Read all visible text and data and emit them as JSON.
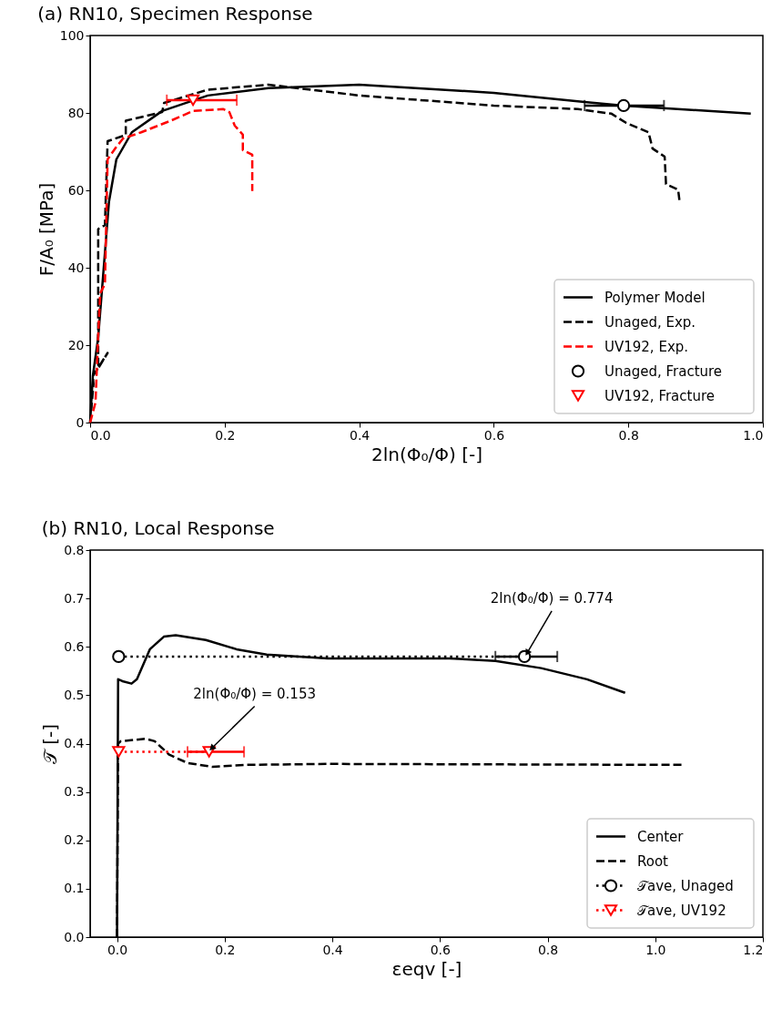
{
  "chart_data": [
    {
      "type": "line",
      "title": "(a) RN10, Specimen Response",
      "xlabel": "2ln(Φ₀/Φ) [-]",
      "ylabel": "F/A₀ [MPa]",
      "xlim": [
        0,
        1.0
      ],
      "ylim": [
        0,
        100
      ],
      "xticks": [
        {
          "value": 0,
          "label": "0.0"
        },
        {
          "value": 0.2,
          "label": "0.2"
        },
        {
          "value": 0.4,
          "label": "0.4"
        },
        {
          "value": 0.6,
          "label": "0.6"
        },
        {
          "value": 0.8,
          "label": "0.8"
        },
        {
          "value": 1.0,
          "label": "1.0"
        }
      ],
      "yticks": [
        0,
        20,
        40,
        60,
        80,
        100
      ],
      "grid": false,
      "legend": "bottom right",
      "series": [
        {
          "name": "Polymer Model",
          "color": "#000000",
          "line_style": "solid",
          "x": [
            0,
            0.004,
            0.012,
            0.028,
            0.039,
            0.062,
            0.107,
            0.175,
            0.265,
            0.4,
            0.6,
            0.735,
            0.793,
            0.982
          ],
          "values": [
            0,
            12,
            22,
            57,
            68,
            75,
            80.5,
            84.5,
            86.4,
            87.3,
            85.2,
            82.8,
            81.9,
            79.8
          ]
        },
        {
          "name": "Unaged, Exp.",
          "color": "#000000",
          "line_style": "dashed",
          "x": [
            0,
            0.005,
            0.004,
            0.026,
            0.012,
            0.012,
            0.022,
            0.026,
            0.053,
            0.053,
            0.107,
            0.11,
            0.175,
            0.265,
            0.4,
            0.6,
            0.725,
            0.775,
            0.797,
            0.83,
            0.836,
            0.854,
            0.856,
            0.874,
            0.876
          ],
          "values": [
            0,
            10,
            12,
            18,
            14,
            50,
            51,
            72.7,
            74.3,
            78,
            80.2,
            82.6,
            86,
            87.3,
            84.5,
            81.9,
            81,
            79.8,
            77.4,
            75,
            70.8,
            68.7,
            61.6,
            60.2,
            57.4
          ]
        },
        {
          "name": "UV192, Exp.",
          "color": "#ff0000",
          "line_style": "dashed",
          "x": [
            0,
            0.008,
            0.012,
            0.015,
            0.022,
            0.026,
            0.038,
            0.049,
            0.076,
            0.12,
            0.153,
            0.198,
            0.207,
            0.215,
            0.227,
            0.227,
            0.241,
            0.241
          ],
          "values": [
            0,
            5.2,
            22.6,
            33.4,
            35.8,
            68,
            71,
            73.4,
            75,
            78,
            80.5,
            81,
            80.2,
            76.7,
            74.4,
            70.4,
            69.2,
            59.8
          ]
        },
        {
          "name": "Unaged, Fracture",
          "type": "scatter",
          "color": "#000000",
          "marker": "circle",
          "x": [
            0.793
          ],
          "values": [
            81.9
          ],
          "xerrors": [
            [
              0.735,
              0.853
            ]
          ]
        },
        {
          "name": "UV192, Fracture",
          "type": "scatter",
          "color": "#ff0000",
          "marker": "triangle",
          "x": [
            0.153
          ],
          "values": [
            83.3
          ],
          "xerrors": [
            [
              0.114,
              0.218
            ]
          ]
        }
      ]
    },
    {
      "type": "line",
      "title": "(b) RN10, Local Response",
      "xlabel": "εeqv [-]",
      "ylabel": "𝒯 [-]",
      "xlim": [
        -0.05,
        1.2
      ],
      "ylim": [
        0,
        0.8
      ],
      "xticks": [
        {
          "value": 0,
          "label": "0.0"
        },
        {
          "value": 0.2,
          "label": "0.2"
        },
        {
          "value": 0.4,
          "label": "0.4"
        },
        {
          "value": 0.6,
          "label": "0.6"
        },
        {
          "value": 0.8,
          "label": "0.8"
        },
        {
          "value": 1.0,
          "label": "1.0"
        },
        {
          "value": 1.2,
          "label": "1.2"
        }
      ],
      "yticks": [
        {
          "value": 0,
          "label": "0.0"
        },
        {
          "value": 0.1,
          "label": "0.1"
        },
        {
          "value": 0.2,
          "label": "0.2"
        },
        {
          "value": 0.3,
          "label": "0.3"
        },
        {
          "value": 0.4,
          "label": "0.4"
        },
        {
          "value": 0.5,
          "label": "0.5"
        },
        {
          "value": 0.6,
          "label": "0.6"
        },
        {
          "value": 0.7,
          "label": "0.7"
        },
        {
          "value": 0.8,
          "label": "0.8"
        }
      ],
      "grid": false,
      "legend": "bottom right",
      "series": [
        {
          "name": "Center",
          "color": "#000000",
          "line_style": "solid",
          "x": [
            0,
            0.002,
            0.01,
            0.027,
            0.037,
            0.061,
            0.087,
            0.109,
            0.165,
            0.222,
            0.278,
            0.392,
            0.618,
            0.703,
            0.788,
            0.873,
            0.944
          ],
          "values": [
            0,
            0.533,
            0.529,
            0.524,
            0.533,
            0.595,
            0.621,
            0.624,
            0.614,
            0.595,
            0.584,
            0.576,
            0.576,
            0.571,
            0.556,
            0.533,
            0.505
          ]
        },
        {
          "name": "Root",
          "color": "#000000",
          "line_style": "dashed",
          "x": [
            0,
            0.002,
            0.007,
            0.053,
            0.07,
            0.097,
            0.131,
            0.177,
            0.239,
            0.392,
            1.05
          ],
          "values": [
            0,
            0.4,
            0.405,
            0.41,
            0.405,
            0.377,
            0.36,
            0.352,
            0.356,
            0.358,
            0.356
          ]
        },
        {
          "name": "𝒯ave, Unaged",
          "color": "#000000",
          "line_style": "dotted",
          "marker": "circle",
          "x": [
            0.003,
            0.757
          ],
          "values": [
            0.58,
            0.58
          ],
          "xerrors": [
            null,
            [
              0.703,
              0.818
            ]
          ]
        },
        {
          "name": "𝒯ave, UV192",
          "color": "#ff0000",
          "line_style": "dotted",
          "marker": "triangle",
          "x": [
            0.003,
            0.171
          ],
          "values": [
            0.383,
            0.383
          ],
          "xerrors": [
            null,
            [
              0.131,
              0.236
            ]
          ]
        }
      ],
      "annotations": [
        {
          "text": "2ln(Φ₀/Φ) = 0.774",
          "x": 0.757,
          "y": 0.58
        },
        {
          "text": "2ln(Φ₀/Φ) = 0.153",
          "x": 0.171,
          "y": 0.383
        }
      ]
    }
  ]
}
